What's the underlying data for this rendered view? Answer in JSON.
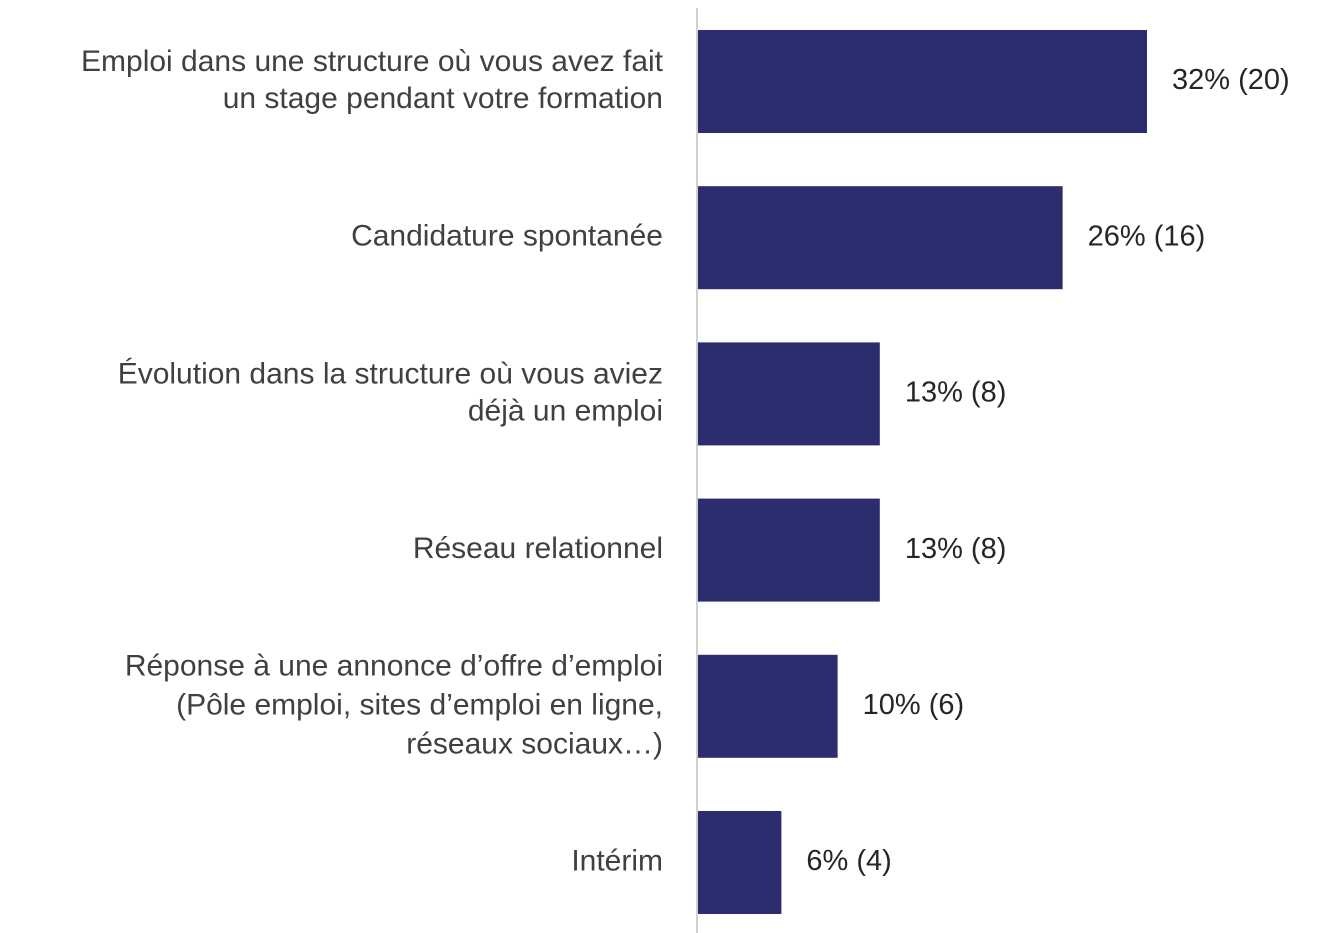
{
  "chart_data": {
    "type": "barh",
    "categories": [
      "Emploi dans une structure où vous avez fait\nun stage pendant votre formation",
      "Candidature spontanée",
      "Évolution dans la structure où vous aviez\ndéjà un emploi",
      "Réseau relationnel",
      "Réponse à une annonce d’offre d’emploi\n(Pôle emploi, sites d’emploi en ligne,\nréseaux sociaux…)",
      "Intérim"
    ],
    "values": [
      32,
      26,
      13,
      13,
      10,
      6
    ],
    "value_labels": [
      "32% (20)",
      "26% (16)",
      "13% (8)",
      "13% (8)",
      "10% (6)",
      "6% (4)"
    ],
    "color": "#2b2d6e"
  }
}
